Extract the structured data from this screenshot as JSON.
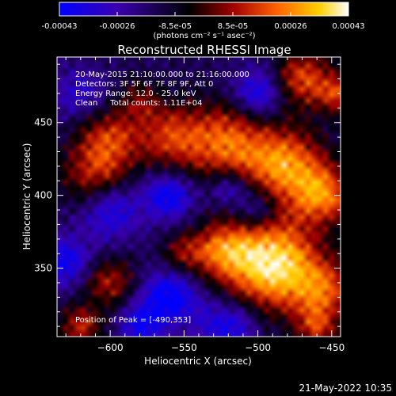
{
  "chart_data": {
    "type": "heatmap",
    "title": "Reconstructed RHESSI Image",
    "xlabel": "Heliocentric X (arcsec)",
    "ylabel": "Heliocentric Y (arcsec)",
    "xlim": [
      -636,
      -444
    ],
    "ylim": [
      303,
      495
    ],
    "x_ticks": [
      -600,
      -550,
      -500,
      -450
    ],
    "y_ticks": [
      350,
      400,
      450
    ],
    "colorbar": {
      "ticks": [
        "-0.00043",
        "-0.00026",
        "-8.5e-05",
        "8.5e-05",
        "0.00026",
        "0.00043"
      ],
      "min": -0.00043,
      "max": 0.00043,
      "unit_label": "(photons cm⁻² s⁻¹ asec⁻²)",
      "colormap": [
        "#0000ff",
        "#3a00b0",
        "#000000",
        "#a00000",
        "#ff6000",
        "#ffd000",
        "#ffffff"
      ]
    },
    "info_lines": [
      "20-May-2015 21:10:00.000 to 21:16:00.000",
      "Detectors: 3F 5F 6F 7F 8F 9F, Att 0",
      "Energy Range: 12.0 - 25.0 keV",
      "Clean     Total counts: 1.11E+04"
    ],
    "peak_label": "Position of Peak = [-490,353]",
    "peak": [
      -490,
      353
    ],
    "blobs": [
      {
        "x": -490,
        "y": 353,
        "sigma": 22,
        "amp": 1.0
      },
      {
        "x": -525,
        "y": 362,
        "sigma": 14,
        "amp": 0.55
      },
      {
        "x": -455,
        "y": 335,
        "sigma": 14,
        "amp": 0.5
      },
      {
        "x": -552,
        "y": 360,
        "sigma": 10,
        "amp": 0.35
      },
      {
        "x": -520,
        "y": 435,
        "sigma": 20,
        "amp": 0.65
      },
      {
        "x": -480,
        "y": 420,
        "sigma": 18,
        "amp": 0.7
      },
      {
        "x": -455,
        "y": 400,
        "sigma": 14,
        "amp": 0.6
      },
      {
        "x": -560,
        "y": 440,
        "sigma": 16,
        "amp": 0.5
      },
      {
        "x": -610,
        "y": 415,
        "sigma": 16,
        "amp": 0.5
      },
      {
        "x": -600,
        "y": 440,
        "sigma": 14,
        "amp": 0.45
      },
      {
        "x": -470,
        "y": 480,
        "sigma": 14,
        "amp": 0.55
      },
      {
        "x": -445,
        "y": 470,
        "sigma": 10,
        "amp": 0.5
      },
      {
        "x": -600,
        "y": 340,
        "sigma": 12,
        "amp": 0.45
      },
      {
        "x": -620,
        "y": 310,
        "sigma": 10,
        "amp": 0.5
      },
      {
        "x": -460,
        "y": 310,
        "sigma": 10,
        "amp": 0.45
      },
      {
        "x": -580,
        "y": 465,
        "sigma": 10,
        "amp": 0.3
      },
      {
        "x": -560,
        "y": 330,
        "sigma": 14,
        "amp": -0.55
      },
      {
        "x": -520,
        "y": 310,
        "sigma": 14,
        "amp": -0.45
      },
      {
        "x": -600,
        "y": 390,
        "sigma": 14,
        "amp": -0.45
      },
      {
        "x": -560,
        "y": 400,
        "sigma": 12,
        "amp": -0.5
      },
      {
        "x": -520,
        "y": 405,
        "sigma": 10,
        "amp": -0.4
      },
      {
        "x": -500,
        "y": 470,
        "sigma": 12,
        "amp": -0.5
      },
      {
        "x": -630,
        "y": 355,
        "sigma": 12,
        "amp": -0.45
      },
      {
        "x": -580,
        "y": 310,
        "sigma": 10,
        "amp": -0.4
      },
      {
        "x": -500,
        "y": 390,
        "sigma": 10,
        "amp": -0.35
      },
      {
        "x": -620,
        "y": 470,
        "sigma": 12,
        "amp": -0.3
      }
    ]
  },
  "footer": {
    "timestamp": "21-May-2022 10:35"
  }
}
